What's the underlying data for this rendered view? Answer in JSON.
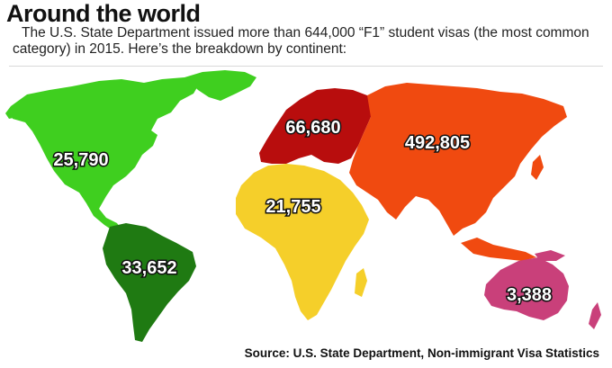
{
  "header": {
    "title": "Around the world",
    "subtitle": "The U.S. State Department issued more than 644,000 “F1” student visas (the most common category) in 2015. Here’s the breakdown by continent:"
  },
  "regions": [
    {
      "key": "north_america",
      "value": "25,790",
      "color": "#3fcf1f"
    },
    {
      "key": "south_america",
      "value": "33,652",
      "color": "#1f7a12"
    },
    {
      "key": "europe",
      "value": "66,680",
      "color": "#b80d0d"
    },
    {
      "key": "africa",
      "value": "21,755",
      "color": "#f5cf2a"
    },
    {
      "key": "asia",
      "value": "492,805",
      "color": "#f04a10"
    },
    {
      "key": "oceania",
      "value": "3,388",
      "color": "#c9407a"
    }
  ],
  "source": "Source: U.S. State Department, Non-immigrant Visa Statistics"
}
